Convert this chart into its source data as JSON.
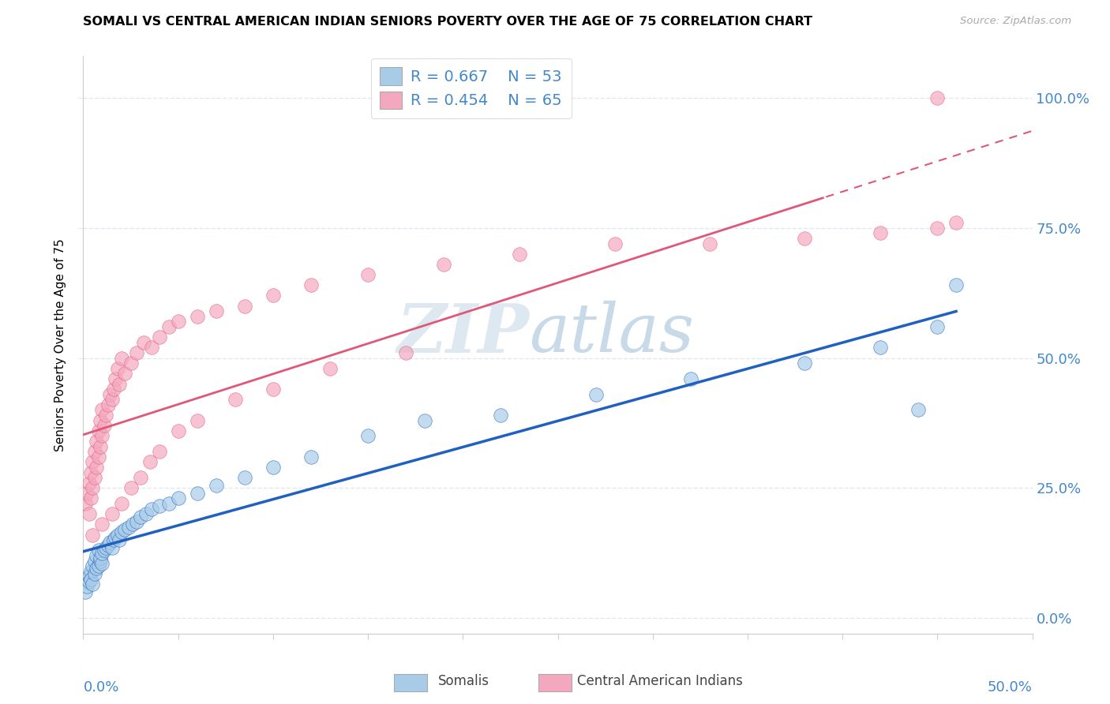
{
  "title": "SOMALI VS CENTRAL AMERICAN INDIAN SENIORS POVERTY OVER THE AGE OF 75 CORRELATION CHART",
  "source": "Source: ZipAtlas.com",
  "ylabel": "Seniors Poverty Over the Age of 75",
  "xlim": [
    0.0,
    0.5
  ],
  "ylim": [
    -0.03,
    1.08
  ],
  "ytick_values": [
    0.0,
    0.25,
    0.5,
    0.75,
    1.0
  ],
  "ytick_labels": [
    "0.0%",
    "25.0%",
    "50.0%",
    "75.0%",
    "100.0%"
  ],
  "xtick_values": [
    0.0,
    0.05,
    0.1,
    0.15,
    0.2,
    0.25,
    0.3,
    0.35,
    0.4,
    0.45,
    0.5
  ],
  "legend_r1": "R = 0.667",
  "legend_n1": "N = 53",
  "legend_r2": "R = 0.454",
  "legend_n2": "N = 65",
  "color_somali": "#a8cce8",
  "color_ca_indian": "#f4a8c0",
  "line_color_somali": "#2060c0",
  "line_color_ca_indian": "#e05878",
  "axis_label_color": "#4488cc",
  "grid_color": "#e0e8f0",
  "somali_x": [
    0.001,
    0.002,
    0.003,
    0.003,
    0.004,
    0.004,
    0.005,
    0.005,
    0.006,
    0.006,
    0.007,
    0.007,
    0.008,
    0.008,
    0.009,
    0.009,
    0.01,
    0.01,
    0.011,
    0.012,
    0.013,
    0.014,
    0.015,
    0.016,
    0.017,
    0.018,
    0.019,
    0.02,
    0.022,
    0.024,
    0.026,
    0.028,
    0.03,
    0.033,
    0.036,
    0.04,
    0.045,
    0.05,
    0.06,
    0.07,
    0.085,
    0.1,
    0.12,
    0.15,
    0.18,
    0.22,
    0.27,
    0.32,
    0.38,
    0.42,
    0.44,
    0.45,
    0.46
  ],
  "somali_y": [
    0.05,
    0.06,
    0.08,
    0.07,
    0.09,
    0.075,
    0.065,
    0.1,
    0.085,
    0.11,
    0.095,
    0.12,
    0.1,
    0.13,
    0.11,
    0.115,
    0.105,
    0.125,
    0.13,
    0.135,
    0.14,
    0.145,
    0.135,
    0.15,
    0.155,
    0.16,
    0.15,
    0.165,
    0.17,
    0.175,
    0.18,
    0.185,
    0.195,
    0.2,
    0.21,
    0.215,
    0.22,
    0.23,
    0.24,
    0.255,
    0.27,
    0.29,
    0.31,
    0.35,
    0.38,
    0.39,
    0.43,
    0.46,
    0.49,
    0.52,
    0.4,
    0.56,
    0.64
  ],
  "ca_x": [
    0.001,
    0.002,
    0.003,
    0.003,
    0.004,
    0.004,
    0.005,
    0.005,
    0.006,
    0.006,
    0.007,
    0.007,
    0.008,
    0.008,
    0.009,
    0.009,
    0.01,
    0.01,
    0.011,
    0.012,
    0.013,
    0.014,
    0.015,
    0.016,
    0.017,
    0.018,
    0.019,
    0.02,
    0.022,
    0.025,
    0.028,
    0.032,
    0.036,
    0.04,
    0.045,
    0.05,
    0.06,
    0.07,
    0.085,
    0.1,
    0.12,
    0.15,
    0.19,
    0.23,
    0.28,
    0.33,
    0.38,
    0.42,
    0.45,
    0.46,
    0.005,
    0.01,
    0.015,
    0.02,
    0.025,
    0.03,
    0.035,
    0.04,
    0.05,
    0.06,
    0.08,
    0.1,
    0.13,
    0.17,
    0.45
  ],
  "ca_y": [
    0.22,
    0.24,
    0.26,
    0.2,
    0.28,
    0.23,
    0.3,
    0.25,
    0.32,
    0.27,
    0.34,
    0.29,
    0.36,
    0.31,
    0.38,
    0.33,
    0.35,
    0.4,
    0.37,
    0.39,
    0.41,
    0.43,
    0.42,
    0.44,
    0.46,
    0.48,
    0.45,
    0.5,
    0.47,
    0.49,
    0.51,
    0.53,
    0.52,
    0.54,
    0.56,
    0.57,
    0.58,
    0.59,
    0.6,
    0.62,
    0.64,
    0.66,
    0.68,
    0.7,
    0.72,
    0.72,
    0.73,
    0.74,
    0.75,
    0.76,
    0.16,
    0.18,
    0.2,
    0.22,
    0.25,
    0.27,
    0.3,
    0.32,
    0.36,
    0.38,
    0.42,
    0.44,
    0.48,
    0.51,
    1.0
  ]
}
